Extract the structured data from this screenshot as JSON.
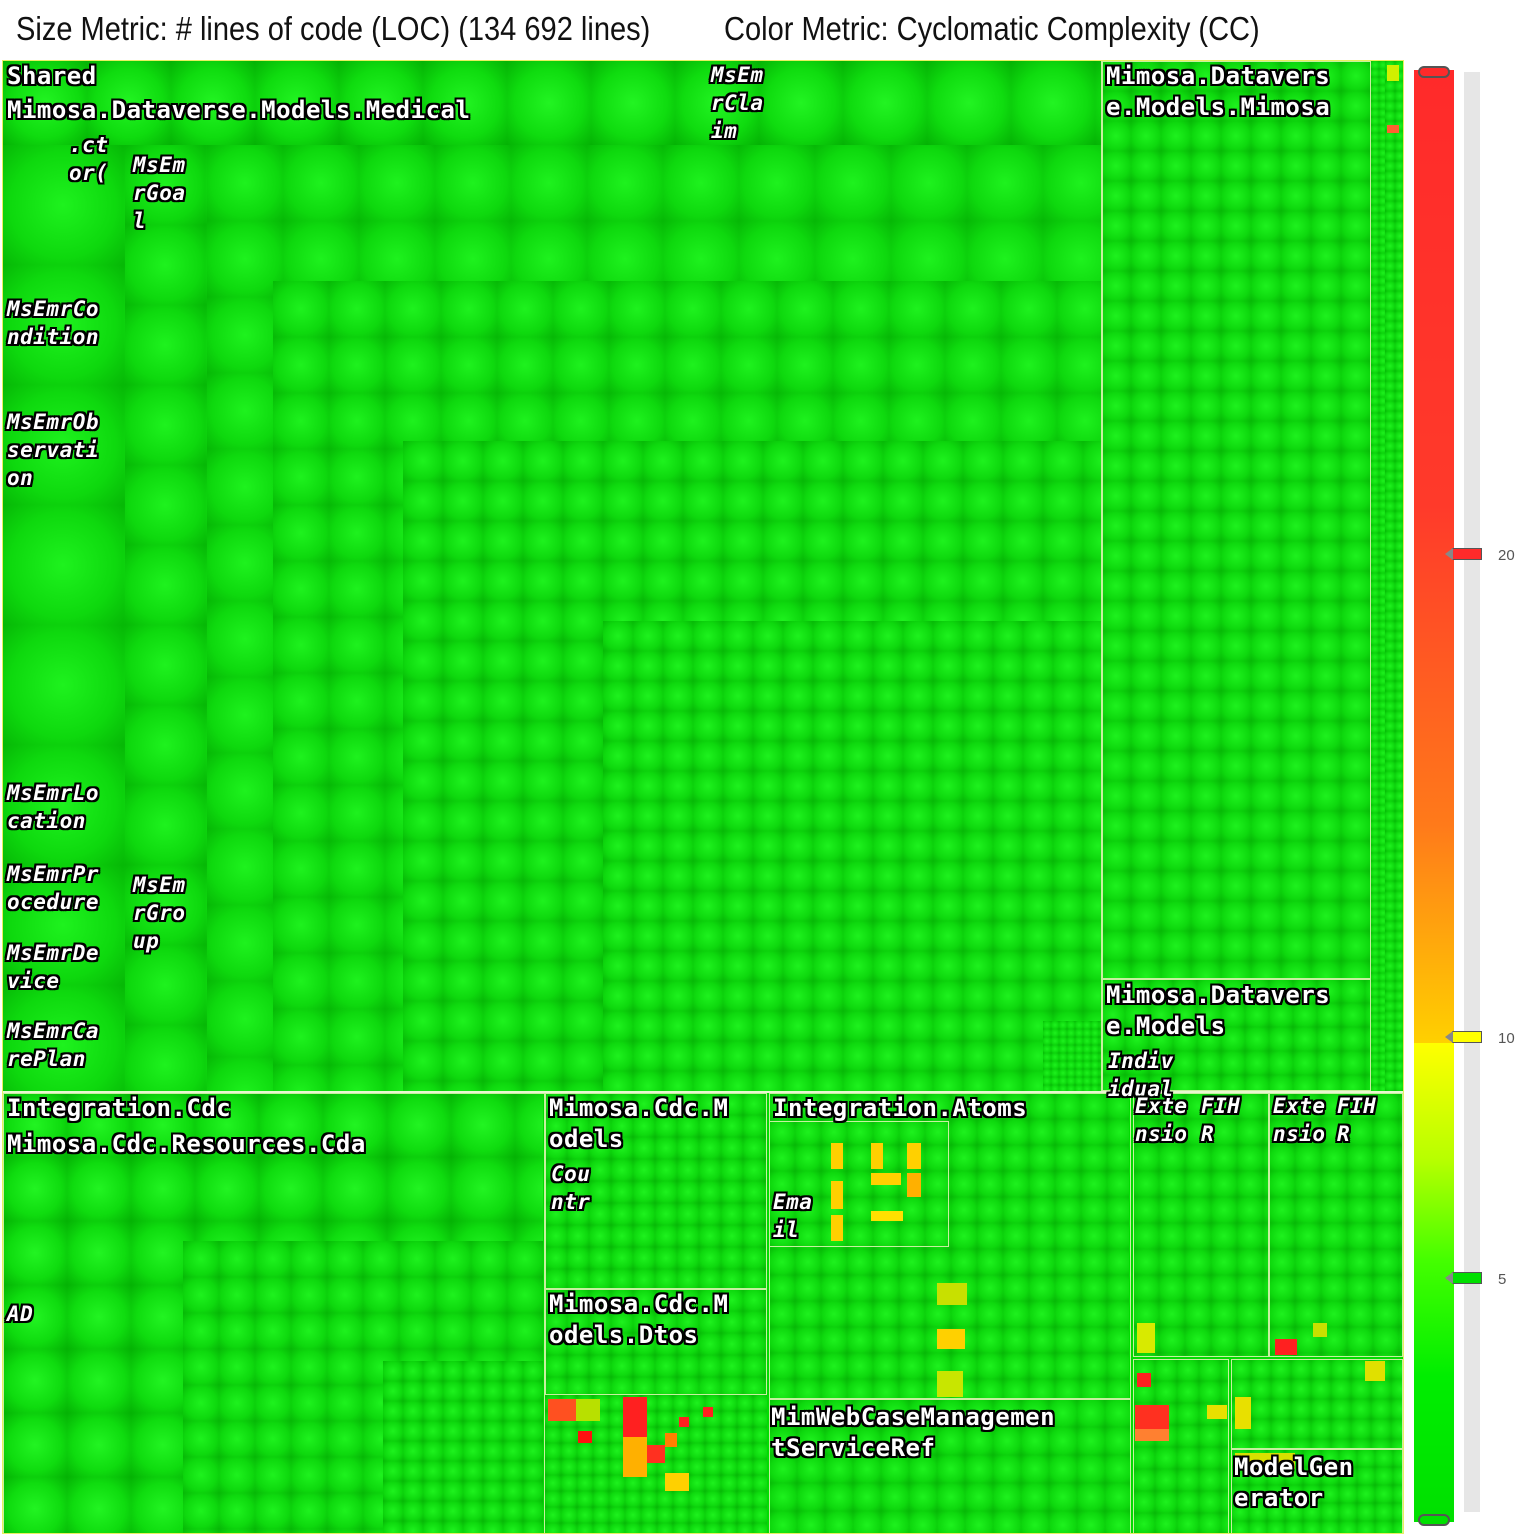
{
  "header": {
    "size_metric": "Size Metric: # lines of code (LOC) (134 692 lines)",
    "color_metric": "Color Metric: Cyclomatic Complexity (CC)"
  },
  "treemap": {
    "labels": {
      "shared": "Shared",
      "medical": "Mimosa.Dataverse.Models.Medical",
      "ctor": ".ct\nor(",
      "msemr_goal": "MsEm\nrGoa\nl",
      "msemr_claim": "MsEm\nrCla\nim",
      "msemr_condition": "MsEmrCo\nndition",
      "msemr_observation": "MsEmrOb\nservati\non",
      "msemr_location": "MsEmrLo\ncation",
      "msemr_procedure": "MsEmrPr\nocedure",
      "msemr_group": "MsEm\nrGro\nup",
      "msemr_device": "MsEmrDe\nvice",
      "msemr_careplan": "MsEmrCa\nrePlan",
      "models_mimosa": "Mimosa.Datavers\ne.Models.Mimosa",
      "models": "Mimosa.Datavers\ne.Models",
      "individual": "Indiv\nidual",
      "integration_cdc": "Integration.Cdc",
      "cdc_resources": "Mimosa.Cdc.Resources.Cda",
      "ad": "AD",
      "cdc_models": "Mimosa.Cdc.M\nodels",
      "country": "Cou\nntr",
      "cdc_dtos": "Mimosa.Cdc.M\nodels.Dtos",
      "integration_atoms": "Integration.Atoms",
      "email": "Ema\nil",
      "extension_1": "Exte\nnsio",
      "fihr_1": "FIH\nR",
      "extension_2": "Exte\nnsio",
      "fihr_2": "FIH\nR",
      "webcase": "MimWebCaseManagemen\ntServiceRef",
      "model_generator": "ModelGen\nerator"
    }
  },
  "legend": {
    "ticks": [
      "20",
      "10",
      "5"
    ],
    "colors": {
      "high": "#ff2a2a",
      "mid": "#ffff00",
      "low": "#00e000"
    }
  }
}
